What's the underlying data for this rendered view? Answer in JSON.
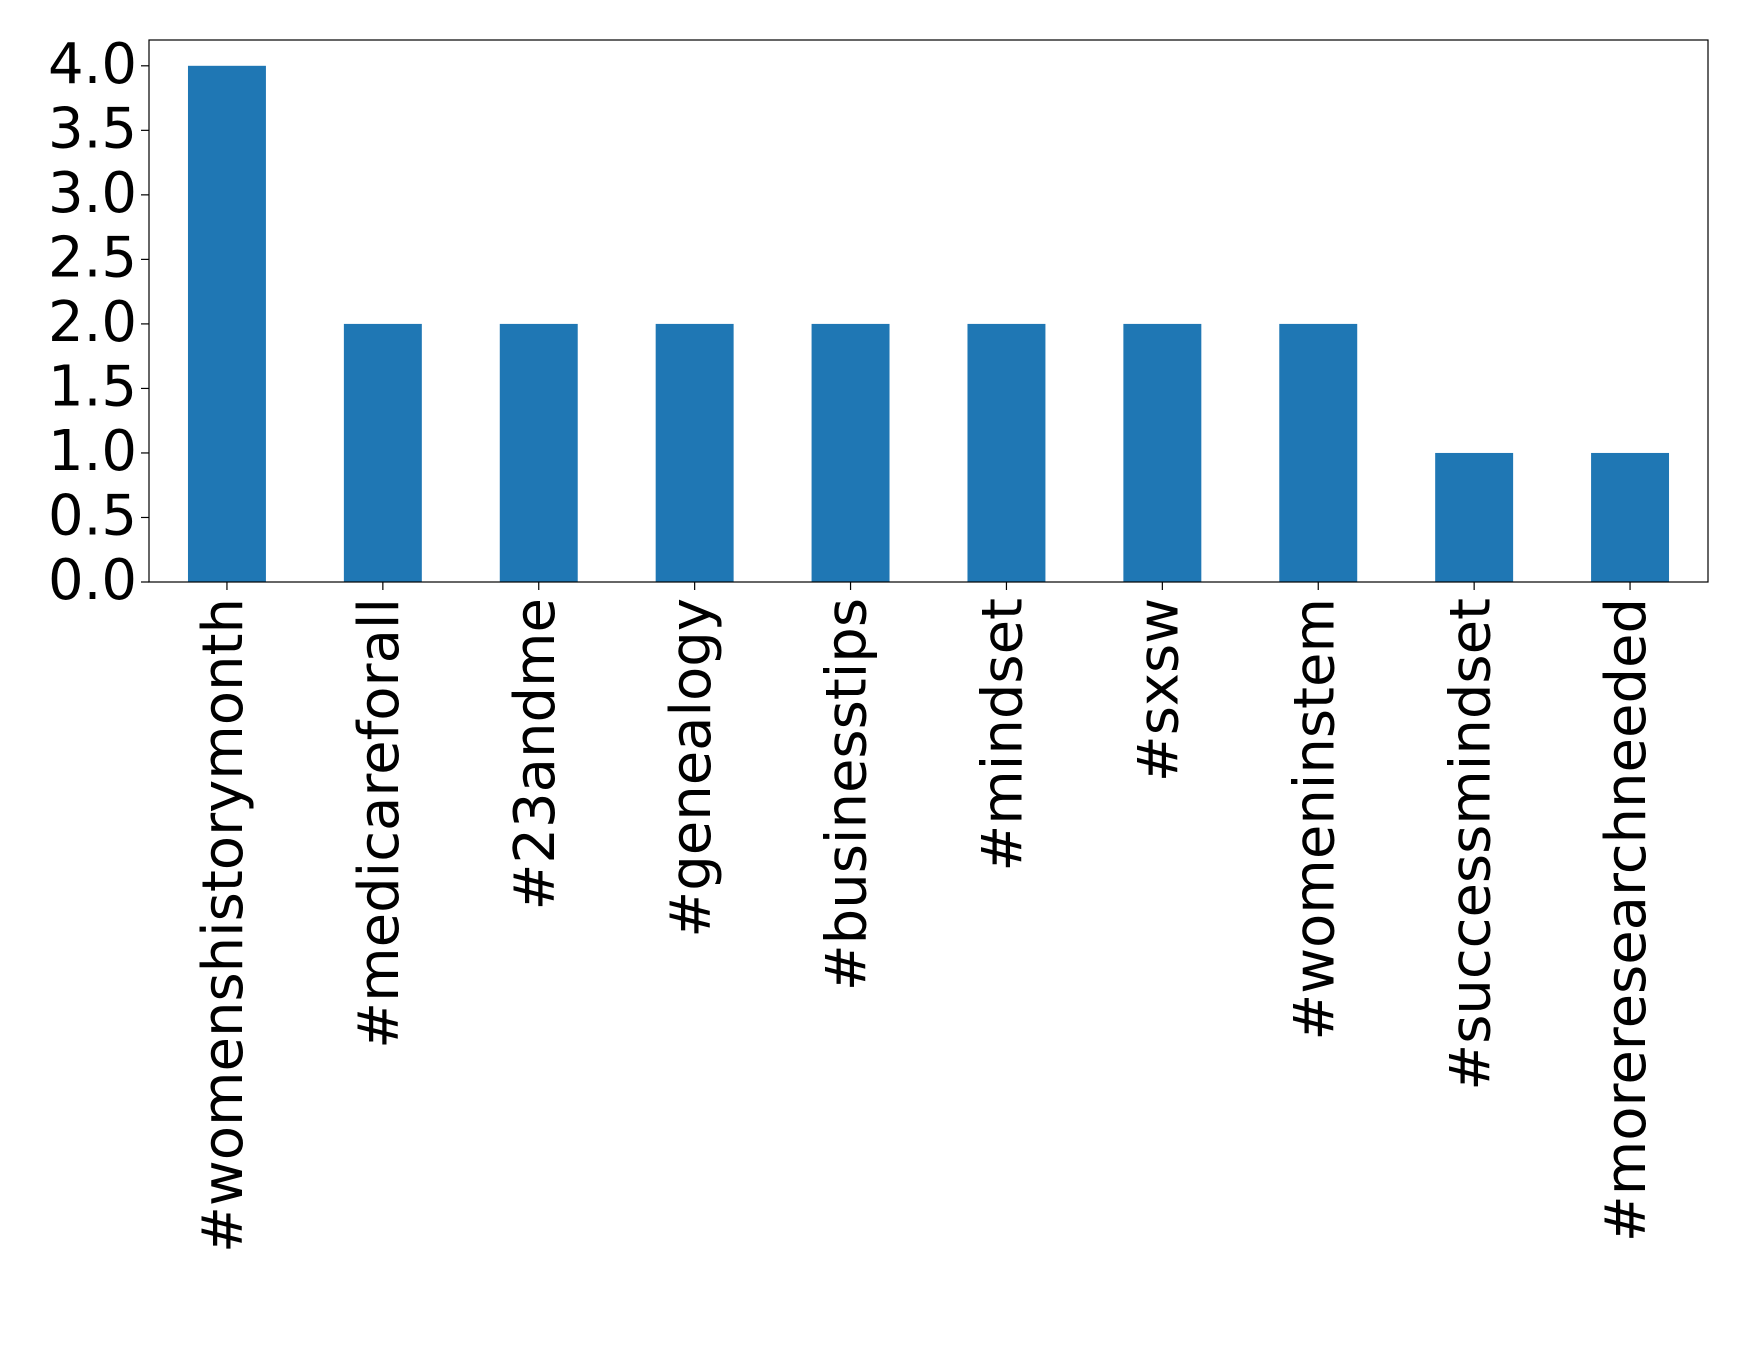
{
  "chart_data": {
    "type": "bar",
    "categories": [
      "#womenshistorymonth",
      "#medicareforall",
      "#23andme",
      "#genealogy",
      "#businesstips",
      "#mindset",
      "#sxsw",
      "#womeninstem",
      "#successmindset",
      "#moreresearchneeded"
    ],
    "values": [
      4,
      2,
      2,
      2,
      2,
      2,
      2,
      2,
      1,
      1
    ],
    "color": "#1f77b4",
    "ylim": [
      0,
      4.2
    ],
    "yticks": [
      {
        "value": 0,
        "label": "0.0"
      },
      0.5,
      {
        "value": 1,
        "label": "1.0"
      },
      1.5,
      {
        "value": 2,
        "label": "2.0"
      },
      2.5,
      {
        "value": 3,
        "label": "3.0"
      },
      3.5,
      {
        "value": 4,
        "label": "4.0"
      }
    ],
    "grid": false
  }
}
